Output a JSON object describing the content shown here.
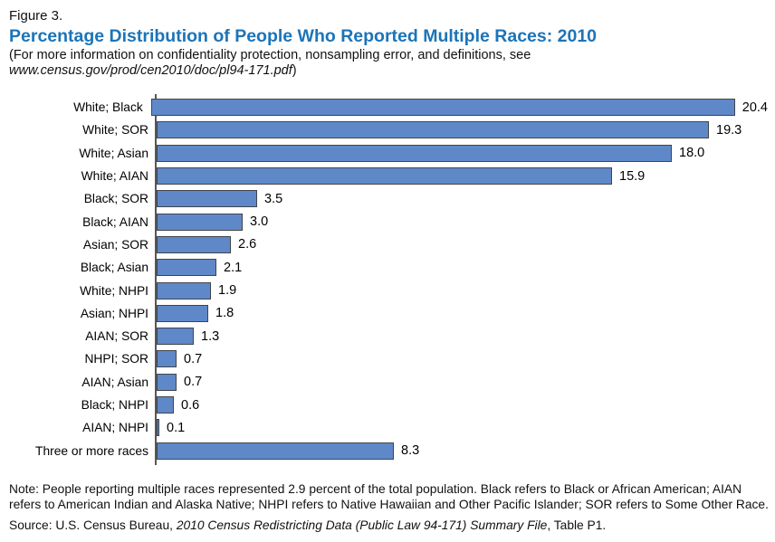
{
  "header": {
    "figure_label": "Figure 3.",
    "title": "Percentage Distribution of People Who Reported Multiple Races: 2010",
    "subtitle_line1": "(For more information on confidentiality protection, nonsampling error, and definitions, see",
    "subtitle_url": "www.census.gov/prod/cen2010/doc/pl94-171.pdf",
    "subtitle_close": ")"
  },
  "chart_data": {
    "type": "bar",
    "orientation": "horizontal",
    "title": "Percentage Distribution of People Who Reported Multiple Races: 2010",
    "categories": [
      "White; Black",
      "White; SOR",
      "White; Asian",
      "White; AIAN",
      "Black; SOR",
      "Black; AIAN",
      "Asian; SOR",
      "Black; Asian",
      "White; NHPI",
      "Asian; NHPI",
      "AIAN; SOR",
      "NHPI; SOR",
      "AIAN; Asian",
      "Black; NHPI",
      "AIAN; NHPI",
      "Three or more races"
    ],
    "values": [
      20.4,
      19.3,
      18.0,
      15.9,
      3.5,
      3.0,
      2.6,
      2.1,
      1.9,
      1.8,
      1.3,
      0.7,
      0.7,
      0.6,
      0.1,
      8.3
    ],
    "value_labels": [
      "20.4",
      "19.3",
      "18.0",
      "15.9",
      "3.5",
      "3.0",
      "2.6",
      "2.1",
      "1.9",
      "1.8",
      "1.3",
      "0.7",
      "0.7",
      "0.6",
      "0.1",
      "8.3"
    ],
    "xlim": [
      0,
      20.4
    ],
    "grid": false,
    "data_labels_position": "right-of-bar",
    "unit": "percent"
  },
  "colors": {
    "title_blue": "#1c74b8",
    "bar_fill": "#5f88c8",
    "bar_border": "#40454b",
    "axis_line": "#55585c"
  },
  "footer": {
    "note": "Note: People reporting multiple races represented 2.9 percent of the total population. Black refers to Black or African American; AIAN refers to American Indian and Alaska Native; NHPI refers to Native Hawaiian and Other Pacific Islander; SOR refers to Some Other Race.",
    "source_prefix": "Source: U.S. Census Bureau, ",
    "source_italic": "2010 Census Redistricting Data (Public Law 94-171) Summary File",
    "source_suffix": ", Table P1."
  }
}
